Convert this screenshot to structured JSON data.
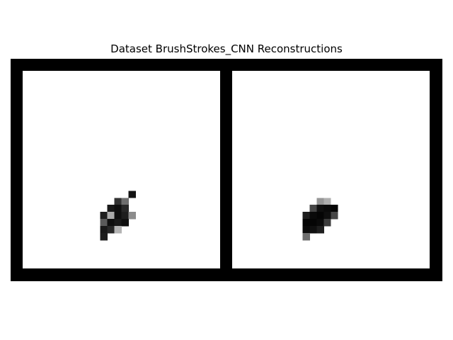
{
  "figure": {
    "title": "Dataset BrushStrokes_CNN Reconstructions"
  },
  "image_grid": {
    "frame_color": "#000000",
    "background_color": "#ffffff",
    "panels": [
      {
        "name": "original",
        "pixels": [
          {
            "col": 15,
            "row": 17,
            "gray": 20
          },
          {
            "col": 13,
            "row": 18,
            "gray": 50
          },
          {
            "col": 14,
            "row": 18,
            "gray": 110
          },
          {
            "col": 12,
            "row": 19,
            "gray": 25
          },
          {
            "col": 13,
            "row": 19,
            "gray": 15
          },
          {
            "col": 14,
            "row": 19,
            "gray": 40
          },
          {
            "col": 11,
            "row": 20,
            "gray": 30
          },
          {
            "col": 12,
            "row": 20,
            "gray": 170
          },
          {
            "col": 13,
            "row": 20,
            "gray": 15
          },
          {
            "col": 14,
            "row": 20,
            "gray": 30
          },
          {
            "col": 15,
            "row": 20,
            "gray": 140
          },
          {
            "col": 11,
            "row": 21,
            "gray": 90
          },
          {
            "col": 12,
            "row": 21,
            "gray": 15
          },
          {
            "col": 13,
            "row": 21,
            "gray": 25
          },
          {
            "col": 14,
            "row": 21,
            "gray": 15
          },
          {
            "col": 11,
            "row": 22,
            "gray": 25
          },
          {
            "col": 12,
            "row": 22,
            "gray": 40
          },
          {
            "col": 13,
            "row": 22,
            "gray": 180
          },
          {
            "col": 11,
            "row": 23,
            "gray": 30
          }
        ]
      },
      {
        "name": "reconstruction",
        "pixels": [
          {
            "col": 12,
            "row": 18,
            "gray": 150
          },
          {
            "col": 13,
            "row": 18,
            "gray": 175
          },
          {
            "col": 11,
            "row": 19,
            "gray": 70
          },
          {
            "col": 12,
            "row": 19,
            "gray": 15
          },
          {
            "col": 13,
            "row": 19,
            "gray": 10
          },
          {
            "col": 14,
            "row": 19,
            "gray": 5
          },
          {
            "col": 10,
            "row": 20,
            "gray": 30
          },
          {
            "col": 11,
            "row": 20,
            "gray": 10
          },
          {
            "col": 12,
            "row": 20,
            "gray": 5
          },
          {
            "col": 13,
            "row": 20,
            "gray": 15
          },
          {
            "col": 14,
            "row": 20,
            "gray": 70
          },
          {
            "col": 10,
            "row": 21,
            "gray": 5
          },
          {
            "col": 11,
            "row": 21,
            "gray": 5
          },
          {
            "col": 12,
            "row": 21,
            "gray": 10
          },
          {
            "col": 13,
            "row": 21,
            "gray": 60
          },
          {
            "col": 10,
            "row": 22,
            "gray": 10
          },
          {
            "col": 11,
            "row": 22,
            "gray": 15
          },
          {
            "col": 12,
            "row": 22,
            "gray": 30
          },
          {
            "col": 10,
            "row": 23,
            "gray": 110
          }
        ]
      }
    ]
  }
}
